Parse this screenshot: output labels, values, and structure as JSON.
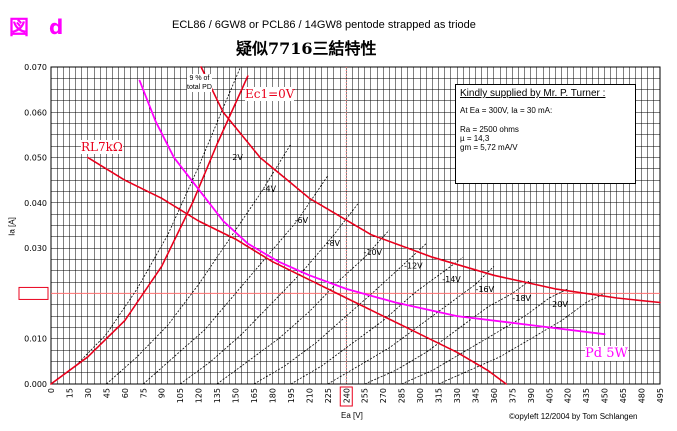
{
  "figure_label": "図　d",
  "header": {
    "subtitle": "ECL86 / 6GW8 or PCL86 / 14GW8 pentode strapped as triode",
    "title": "疑似7716三結特性"
  },
  "info_box": {
    "heading": "Kindly supplied by Mr. P. Turner :",
    "line1": "At Ea = 300V, Ia = 30 mA:",
    "line2": "Ra = 2500 ohms",
    "line3": "µ   = 14,3",
    "line4": "gm = 5,72 mA/V"
  },
  "annotations": {
    "ec1_zero": "Ec1=0V",
    "rl": "RL7kΩ",
    "pd_small_1": "9 % of",
    "pd_small_2": "total PD",
    "pd_label": "Pd 5W",
    "copyright": "©opyleft 12/2004 by Tom Schlangen"
  },
  "highlight_values": {
    "y_020": "0.020",
    "x_240": "240"
  },
  "colors": {
    "red": "#e8001c",
    "magenta": "#ff00ff",
    "title_magenta": "#ff00ff",
    "black": "#000000"
  },
  "chart_data": {
    "type": "line",
    "xlabel": "Ea [V]",
    "ylabel": "Ia [A]",
    "xlim": [
      0,
      495
    ],
    "ylim": [
      0,
      0.07
    ],
    "x_ticks": [
      0,
      15,
      30,
      45,
      60,
      75,
      90,
      105,
      120,
      135,
      150,
      165,
      180,
      195,
      210,
      225,
      240,
      255,
      270,
      285,
      300,
      315,
      330,
      345,
      360,
      375,
      390,
      405,
      420,
      435,
      450,
      465,
      480,
      495
    ],
    "y_ticks": [
      "0.000",
      "0.010",
      "0.020",
      "0.030",
      "0.040",
      "0.050",
      "0.060",
      "0.070"
    ],
    "grid": true,
    "grid_curves": [
      {
        "name": "0V",
        "points": [
          [
            0,
            0
          ],
          [
            20,
            0.004
          ],
          [
            45,
            0.011
          ],
          [
            70,
            0.021
          ],
          [
            95,
            0.033
          ],
          [
            120,
            0.048
          ],
          [
            140,
            0.061
          ],
          [
            154,
            0.07
          ]
        ]
      },
      {
        "name": "-2V",
        "points": [
          [
            45,
            0
          ],
          [
            70,
            0.006
          ],
          [
            95,
            0.013
          ],
          [
            120,
            0.022
          ],
          [
            145,
            0.032
          ],
          [
            170,
            0.042
          ],
          [
            195,
            0.053
          ]
        ]
      },
      {
        "name": "-4V",
        "points": [
          [
            75,
            0
          ],
          [
            100,
            0.006
          ],
          [
            125,
            0.012
          ],
          [
            150,
            0.02
          ],
          [
            175,
            0.028
          ],
          [
            200,
            0.036
          ],
          [
            225,
            0.046
          ]
        ]
      },
      {
        "name": "-6V",
        "points": [
          [
            105,
            0
          ],
          [
            130,
            0.005
          ],
          [
            155,
            0.011
          ],
          [
            180,
            0.018
          ],
          [
            205,
            0.025
          ],
          [
            230,
            0.033
          ],
          [
            250,
            0.04
          ]
        ]
      },
      {
        "name": "-8V",
        "points": [
          [
            135,
            0
          ],
          [
            160,
            0.005
          ],
          [
            185,
            0.01
          ],
          [
            210,
            0.016
          ],
          [
            235,
            0.023
          ],
          [
            255,
            0.028
          ],
          [
            275,
            0.034
          ]
        ]
      },
      {
        "name": "-10V",
        "points": [
          [
            165,
            0
          ],
          [
            190,
            0.004
          ],
          [
            215,
            0.009
          ],
          [
            240,
            0.015
          ],
          [
            265,
            0.021
          ],
          [
            285,
            0.026
          ],
          [
            305,
            0.031
          ]
        ]
      },
      {
        "name": "-12V",
        "points": [
          [
            195,
            0
          ],
          [
            220,
            0.004
          ],
          [
            245,
            0.009
          ],
          [
            270,
            0.014
          ],
          [
            295,
            0.02
          ],
          [
            315,
            0.024
          ],
          [
            335,
            0.028
          ]
        ]
      },
      {
        "name": "-14V",
        "points": [
          [
            225,
            0
          ],
          [
            250,
            0.004
          ],
          [
            275,
            0.008
          ],
          [
            300,
            0.013
          ],
          [
            325,
            0.018
          ],
          [
            345,
            0.022
          ],
          [
            360,
            0.026
          ]
        ]
      },
      {
        "name": "-16V",
        "points": [
          [
            255,
            0
          ],
          [
            280,
            0.003
          ],
          [
            305,
            0.007
          ],
          [
            330,
            0.012
          ],
          [
            355,
            0.017
          ],
          [
            375,
            0.02
          ],
          [
            390,
            0.023
          ]
        ]
      },
      {
        "name": "-18V",
        "points": [
          [
            285,
            0
          ],
          [
            310,
            0.003
          ],
          [
            335,
            0.007
          ],
          [
            360,
            0.011
          ],
          [
            385,
            0.015
          ],
          [
            405,
            0.019
          ],
          [
            420,
            0.021
          ]
        ]
      },
      {
        "name": "-20V",
        "points": [
          [
            315,
            0
          ],
          [
            340,
            0.003
          ],
          [
            365,
            0.006
          ],
          [
            390,
            0.01
          ],
          [
            415,
            0.014
          ],
          [
            435,
            0.018
          ],
          [
            450,
            0.02
          ]
        ]
      }
    ],
    "grid_labels": [
      {
        "text": "-2V",
        "x": 145,
        "y": 0.0495
      },
      {
        "text": "-4V",
        "x": 172,
        "y": 0.0425
      },
      {
        "text": "-6V",
        "x": 198,
        "y": 0.0355
      },
      {
        "text": "-8V",
        "x": 224,
        "y": 0.0305
      },
      {
        "text": "-10V",
        "x": 254,
        "y": 0.0285
      },
      {
        "text": "-12V",
        "x": 287,
        "y": 0.0255
      },
      {
        "text": "-14V",
        "x": 318,
        "y": 0.0225
      },
      {
        "text": "-16V",
        "x": 345,
        "y": 0.0203
      },
      {
        "text": "-18V",
        "x": 375,
        "y": 0.0183
      },
      {
        "text": "-20V",
        "x": 405,
        "y": 0.017
      }
    ],
    "ec1_line": {
      "points": [
        [
          0,
          0
        ],
        [
          30,
          0.006
        ],
        [
          60,
          0.014
        ],
        [
          90,
          0.026
        ],
        [
          115,
          0.04
        ],
        [
          135,
          0.053
        ],
        [
          160,
          0.068
        ]
      ]
    },
    "pd_limit_red": {
      "points": [
        [
          122,
          0.07
        ],
        [
          140,
          0.06
        ],
        [
          170,
          0.05
        ],
        [
          210,
          0.041
        ],
        [
          260,
          0.033
        ],
        [
          310,
          0.028
        ],
        [
          360,
          0.024
        ],
        [
          410,
          0.021
        ],
        [
          460,
          0.019
        ],
        [
          495,
          0.018
        ]
      ]
    },
    "pd_5w": {
      "points": [
        [
          72,
          0.067
        ],
        [
          85,
          0.058
        ],
        [
          100,
          0.05
        ],
        [
          120,
          0.043
        ],
        [
          140,
          0.036
        ],
        [
          160,
          0.031
        ],
        [
          185,
          0.027
        ],
        [
          210,
          0.024
        ],
        [
          240,
          0.021
        ],
        [
          280,
          0.018
        ],
        [
          330,
          0.015
        ],
        [
          390,
          0.013
        ],
        [
          450,
          0.011
        ]
      ]
    },
    "load_line": {
      "points": [
        [
          30,
          0.05
        ],
        [
          60,
          0.045
        ],
        [
          90,
          0.041
        ],
        [
          120,
          0.036
        ],
        [
          150,
          0.032
        ],
        [
          180,
          0.027
        ],
        [
          210,
          0.023
        ],
        [
          240,
          0.019
        ],
        [
          270,
          0.015
        ],
        [
          300,
          0.011
        ],
        [
          330,
          0.007
        ],
        [
          355,
          0.003
        ],
        [
          370,
          0.0
        ]
      ]
    }
  }
}
